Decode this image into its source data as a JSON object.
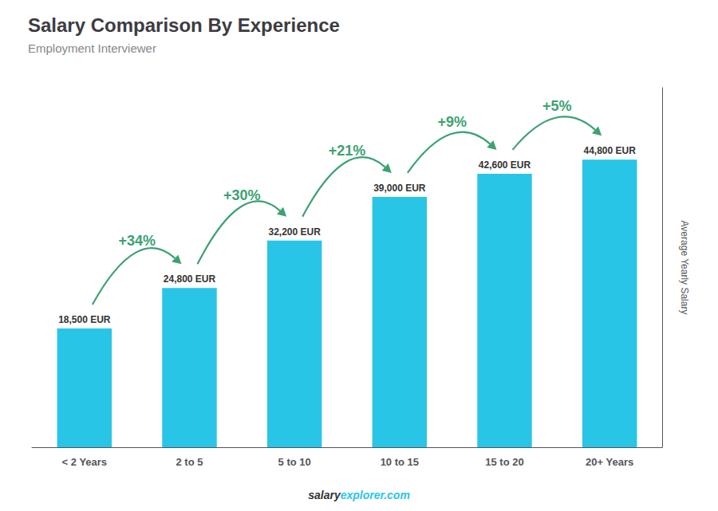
{
  "chart_data": {
    "type": "bar",
    "title": "Salary Comparison By Experience",
    "subtitle": "Employment Interviewer",
    "categories": [
      "< 2 Years",
      "2 to 5",
      "5 to 10",
      "10 to 15",
      "15 to 20",
      "20+ Years"
    ],
    "values": [
      18500,
      24800,
      32200,
      39000,
      42600,
      44800
    ],
    "value_labels": [
      "18,500 EUR",
      "24,800 EUR",
      "32,200 EUR",
      "39,000 EUR",
      "42,600 EUR",
      "44,800 EUR"
    ],
    "data_labels": true,
    "color": "#29c5e6",
    "ylim": [
      0,
      56000
    ],
    "ylabel": "Average Yearly Salary",
    "annotations": [
      "+34%",
      "+30%",
      "+21%",
      "+9%",
      "+5%"
    ],
    "footer": [
      "salary",
      "explorer.com"
    ],
    "grid": false,
    "tick_labels": "x"
  }
}
